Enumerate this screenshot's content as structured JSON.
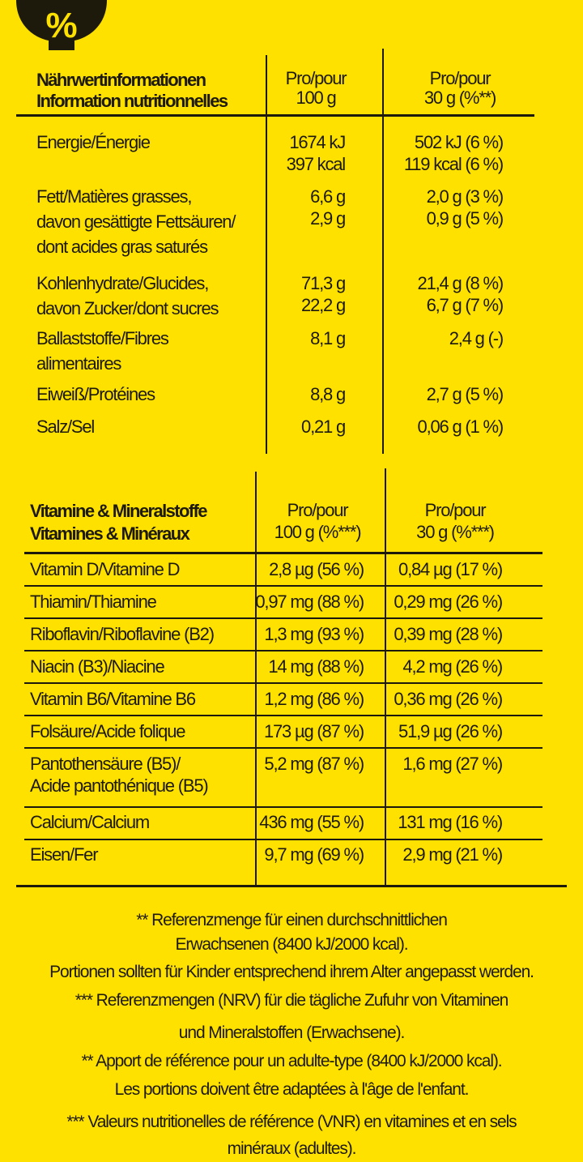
{
  "colors": {
    "background": "#FFE100",
    "ink": "#1d1a0c"
  },
  "icon": "percent-bowl-icon",
  "nutrition": {
    "title": [
      "Nährwertinformationen",
      "Information nutritionnelles"
    ],
    "col1_header": [
      "Pro/pour",
      "100 g"
    ],
    "col2_header": [
      "Pro/pour",
      "30 g (%**)"
    ],
    "rows": [
      {
        "label": [
          "Energie/Énergie"
        ],
        "v100": [
          "1674 kJ",
          "397 kcal"
        ],
        "v30": [
          "502 kJ (6 %)",
          "119 kcal (6 %)"
        ]
      },
      {
        "label": [
          "Fett/Matières grasses,",
          "davon gesättigte Fettsäuren/",
          "dont acides gras saturés"
        ],
        "v100": [
          "6,6 g",
          "2,9 g"
        ],
        "v30": [
          "2,0 g (3 %)",
          "0,9 g (5 %)"
        ]
      },
      {
        "label": [
          "Kohlenhydrate/Glucides,",
          "davon Zucker/dont sucres"
        ],
        "v100": [
          "71,3 g",
          "22,2 g"
        ],
        "v30": [
          "21,4 g (8 %)",
          "6,7 g (7 %)"
        ]
      },
      {
        "label": [
          "Ballaststoffe/Fibres",
          "alimentaires"
        ],
        "v100": [
          "8,1 g"
        ],
        "v30": [
          "2,4 g (-)"
        ]
      },
      {
        "label": [
          "Eiweiß/Protéines"
        ],
        "v100": [
          "8,8 g"
        ],
        "v30": [
          "2,7 g (5 %)"
        ]
      },
      {
        "label": [
          "Salz/Sel"
        ],
        "v100": [
          "0,21 g"
        ],
        "v30": [
          "0,06 g (1 %)"
        ]
      }
    ]
  },
  "vitamins": {
    "title": [
      "Vitamine & Mineralstoffe",
      "Vitamines & Minéraux"
    ],
    "col1_header": [
      "Pro/pour",
      "100 g (%***)"
    ],
    "col2_header": [
      "Pro/pour",
      "30 g (%***)"
    ],
    "rows": [
      {
        "label": [
          "Vitamin D/Vitamine D"
        ],
        "v100": [
          "2,8 µg (56 %)"
        ],
        "v30": [
          "0,84 µg (17 %)"
        ]
      },
      {
        "label": [
          "Thiamin/Thiamine"
        ],
        "v100": [
          "0,97 mg (88 %)"
        ],
        "v30": [
          "0,29 mg (26 %)"
        ]
      },
      {
        "label": [
          "Riboflavin/Riboflavine (B2)"
        ],
        "v100": [
          "1,3 mg (93 %)"
        ],
        "v30": [
          "0,39 mg (28 %)"
        ]
      },
      {
        "label": [
          "Niacin (B3)/Niacine"
        ],
        "v100": [
          "14 mg (88 %)"
        ],
        "v30": [
          "4,2 mg (26 %)"
        ]
      },
      {
        "label": [
          "Vitamin B6/Vitamine B6"
        ],
        "v100": [
          "1,2 mg (86 %)"
        ],
        "v30": [
          "0,36 mg (26 %)"
        ]
      },
      {
        "label": [
          "Folsäure/Acide folique"
        ],
        "v100": [
          "173 µg (87 %)"
        ],
        "v30": [
          "51,9 µg (26 %)"
        ]
      },
      {
        "label": [
          "Pantothensäure (B5)/",
          "Acide  pantothénique (B5)"
        ],
        "v100": [
          "5,2 mg (87 %)"
        ],
        "v30": [
          "1,6 mg (27 %)"
        ]
      },
      {
        "label": [
          "Calcium/Calcium"
        ],
        "v100": [
          "436 mg (55 %)"
        ],
        "v30": [
          "131 mg (16 %)"
        ]
      },
      {
        "label": [
          "Eisen/Fer"
        ],
        "v100": [
          "9,7 mg (69 %)"
        ],
        "v30": [
          "2,9 mg (21 %)"
        ]
      }
    ]
  },
  "footnotes": [
    "** Referenzmenge für einen durchschnittlichen",
    "Erwachsenen (8400 kJ/2000 kcal).",
    "Portionen sollten für Kinder entsprechend ihrem Alter angepasst werden.",
    "*** Referenzmengen (NRV) für die tägliche Zufuhr von Vitaminen",
    "und Mineralstoffen (Erwachsene).",
    "** Apport de référence pour un adulte-type (8400 kJ/2000 kcal).",
    "Les portions doivent être adaptées à l'âge de l'enfant.",
    "*** Valeurs nutritionelles de référence (VNR) en vitamines et en sels",
    "minéraux (adultes)."
  ]
}
